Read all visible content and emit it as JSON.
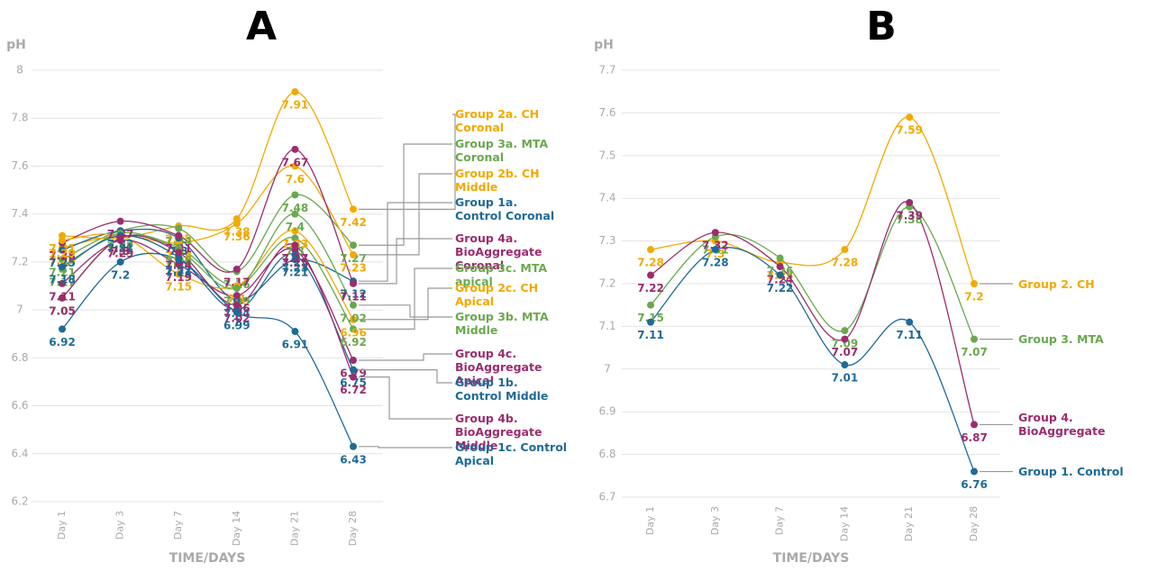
{
  "chart_data": [
    {
      "type": "line",
      "title": "A",
      "y_label": "pH",
      "x_label": "TIME/DAYS",
      "categories": [
        "Day 1",
        "Day 3",
        "Day 7",
        "Day 14",
        "Day 21",
        "Day 28"
      ],
      "ylim": [
        6.2,
        8
      ],
      "yticks": [
        6.2,
        6.4,
        6.6,
        6.8,
        7,
        7.2,
        7.4,
        7.6,
        7.8,
        8
      ],
      "grid": true,
      "series": [
        {
          "name": "Group 2a. CH Coronal",
          "color": "#f2a900",
          "values": [
            7.31,
            7.3,
            7.35,
            7.38,
            7.91,
            7.42
          ]
        },
        {
          "name": "Group 3a. MTA Coronal",
          "color": "#6aa84f",
          "values": [
            7.21,
            7.33,
            7.34,
            7.16,
            7.48,
            7.27
          ]
        },
        {
          "name": "Group 2b. CH Middle",
          "color": "#f2a900",
          "values": [
            7.26,
            7.31,
            7.28,
            7.36,
            7.6,
            7.23
          ]
        },
        {
          "name": "Group 1a. Control Coronal",
          "color": "#1f6a96",
          "values": [
            7.25,
            7.33,
            7.3,
            7.04,
            7.21,
            7.12
          ]
        },
        {
          "name": "Group 4a. BioAggregate Coronal",
          "color": "#9b2c6e",
          "values": [
            7.28,
            7.37,
            7.31,
            7.17,
            7.67,
            7.11
          ]
        },
        {
          "name": "Group 3c. MTA apical",
          "color": "#6aa84f",
          "values": [
            7.05,
            7.3,
            7.26,
            7.1,
            7.3,
            6.92
          ]
        },
        {
          "name": "Group 2c. CH Apical",
          "color": "#f2a900",
          "values": [
            7.29,
            7.31,
            7.15,
            7.1,
            7.33,
            6.96
          ]
        },
        {
          "name": "Group 3b. MTA Middle",
          "color": "#6aa84f",
          "values": [
            7.17,
            7.32,
            7.25,
            7.09,
            7.4,
            7.02
          ]
        },
        {
          "name": "Group 4c. BioAggregate Apical",
          "color": "#9b2c6e",
          "values": [
            7.11,
            7.29,
            7.19,
            7.06,
            7.25,
            6.79
          ]
        },
        {
          "name": "Group 1b. Control Middle",
          "color": "#1f6a96",
          "values": [
            7.18,
            7.31,
            7.22,
            7.0,
            7.23,
            6.75
          ]
        },
        {
          "name": "Group 4b. BioAggregate Middle",
          "color": "#9b2c6e",
          "values": [
            7.05,
            7.3,
            7.24,
            7.02,
            7.27,
            6.72
          ]
        },
        {
          "name": "Group 1c. Control Apical",
          "color": "#1f6a96",
          "values": [
            6.92,
            7.2,
            7.21,
            6.99,
            6.91,
            6.43
          ]
        }
      ]
    },
    {
      "type": "line",
      "title": "B",
      "y_label": "pH",
      "x_label": "TIME/DAYS",
      "categories": [
        "Day 1",
        "Day 3",
        "Day 7",
        "Day 14",
        "Day 21",
        "Day 28"
      ],
      "ylim": [
        6.7,
        7.7
      ],
      "yticks": [
        6.7,
        6.8,
        6.9,
        7,
        7.1,
        7.2,
        7.3,
        7.4,
        7.5,
        7.6,
        7.7
      ],
      "grid": true,
      "series": [
        {
          "name": "Group 2. CH",
          "color": "#f2a900",
          "values": [
            7.28,
            7.3,
            7.25,
            7.28,
            7.59,
            7.2
          ]
        },
        {
          "name": "Group 3. MTA",
          "color": "#6aa84f",
          "values": [
            7.15,
            7.31,
            7.26,
            7.09,
            7.38,
            7.07
          ]
        },
        {
          "name": "Group 4. BioAggregate",
          "color": "#9b2c6e",
          "values": [
            7.22,
            7.32,
            7.24,
            7.07,
            7.39,
            6.87
          ]
        },
        {
          "name": "Group 1. Control",
          "color": "#1f6a96",
          "values": [
            7.11,
            7.28,
            7.22,
            7.01,
            7.11,
            6.76
          ]
        }
      ]
    }
  ]
}
